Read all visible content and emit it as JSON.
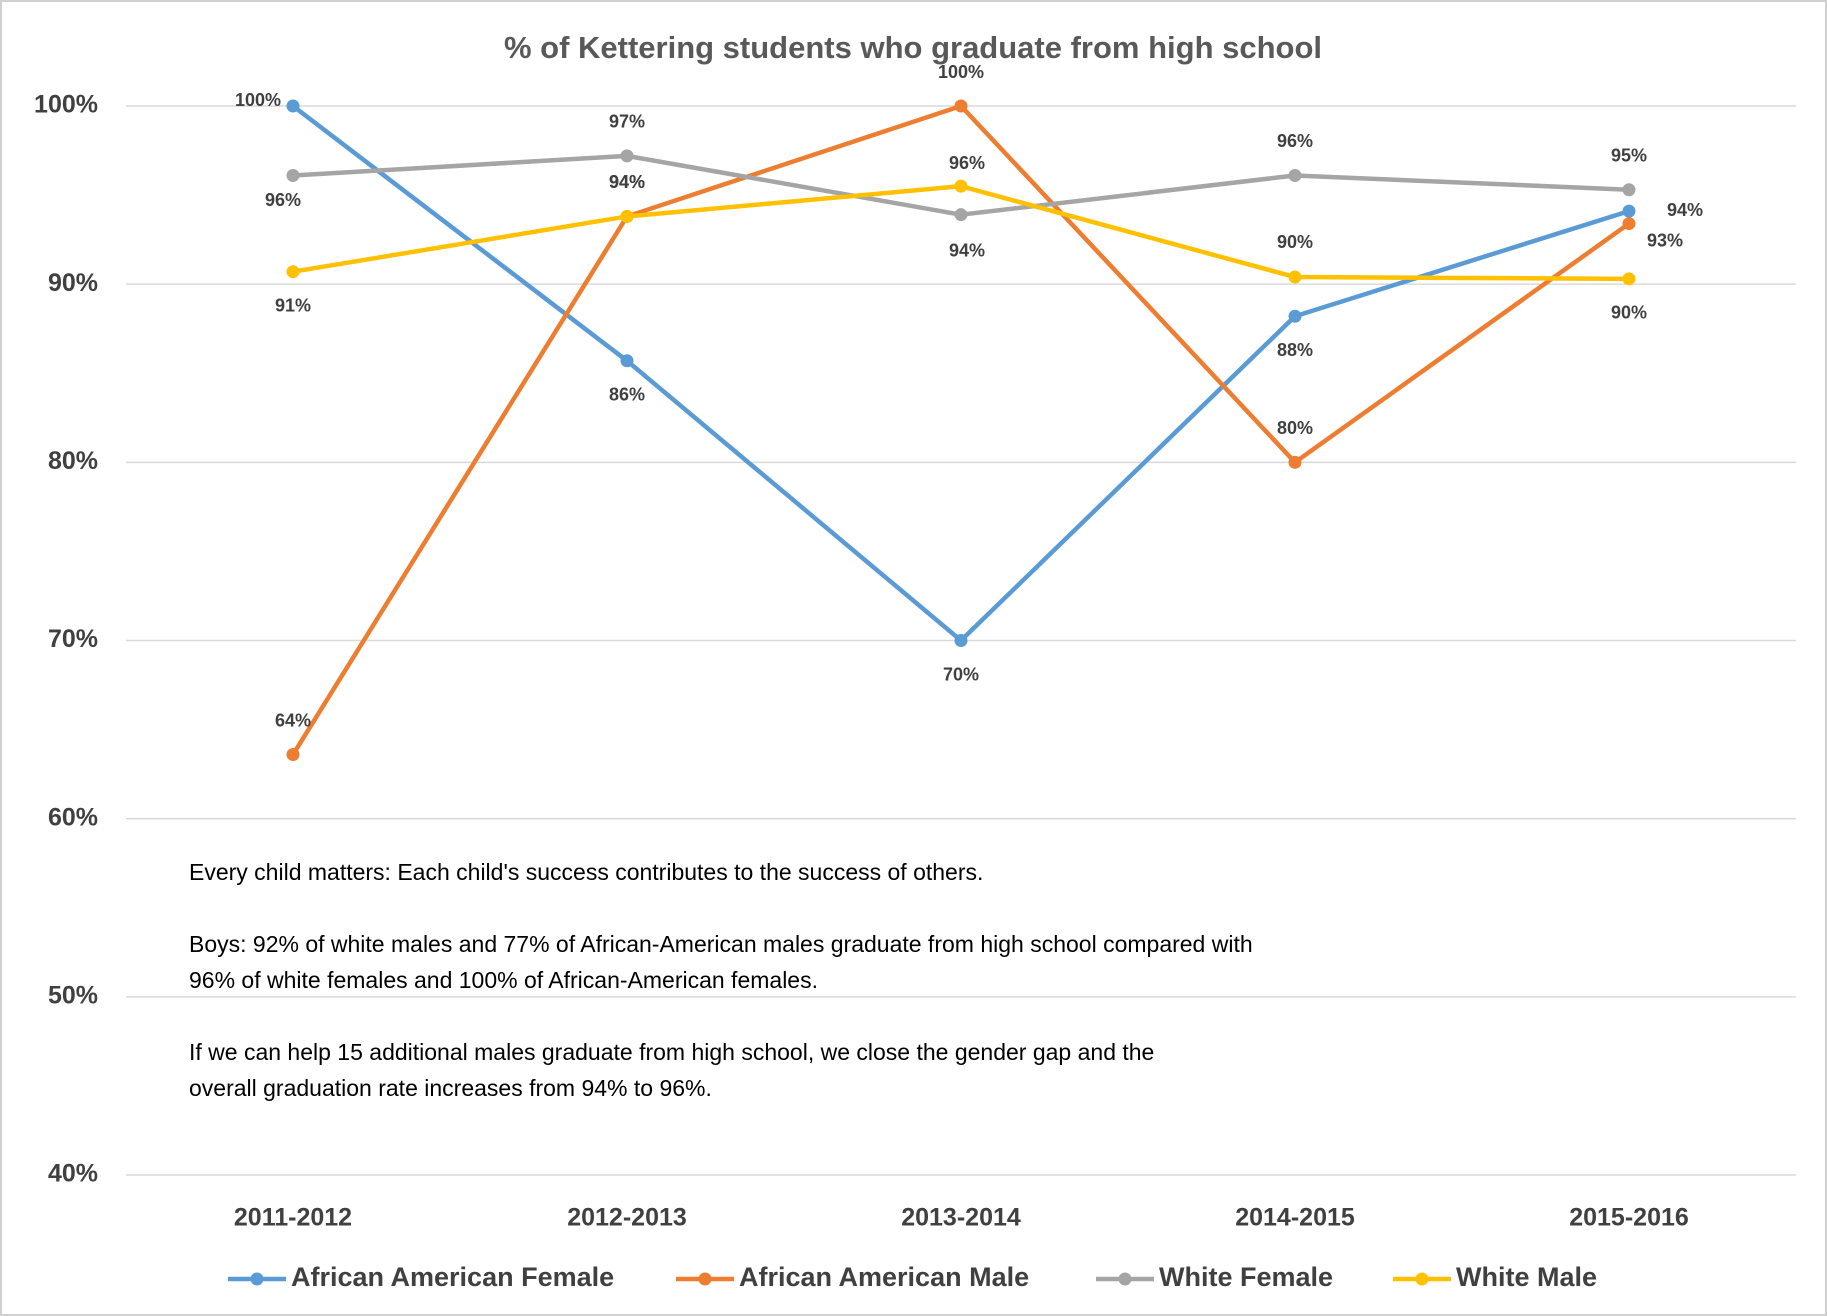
{
  "chart_data": {
    "type": "line",
    "title": "% of Kettering students who graduate from high school",
    "categories": [
      "2011-2012",
      "2012-2013",
      "2013-2014",
      "2014-2015",
      "2015-2016"
    ],
    "series": [
      {
        "name": "African American Female",
        "color": "#5b9bd5",
        "values": [
          100,
          85.7,
          70,
          88.2,
          94.1
        ],
        "value_labels": [
          "100%",
          "86%",
          "70%",
          "88%",
          "94%"
        ]
      },
      {
        "name": "African American Male",
        "color": "#ed7d31",
        "values": [
          63.6,
          93.8,
          100,
          80,
          93.4
        ],
        "value_labels": [
          "64%",
          "94%",
          "100%",
          "80%",
          "93%"
        ]
      },
      {
        "name": "White Female",
        "color": "#a5a5a5",
        "values": [
          96.1,
          97.2,
          93.9,
          96.1,
          95.3
        ],
        "value_labels": [
          "96%",
          "97%",
          "94%",
          "96%",
          "95%"
        ]
      },
      {
        "name": "White Male",
        "color": "#ffc000",
        "values": [
          90.7,
          93.8,
          95.5,
          90.4,
          90.3
        ],
        "value_labels": [
          "91%",
          "94%",
          "96%",
          "90%",
          "90%"
        ]
      }
    ],
    "ylim": [
      40,
      100
    ],
    "yticks": [
      {
        "value": 40,
        "label": "40%"
      },
      {
        "value": 50,
        "label": "50%"
      },
      {
        "value": 60,
        "label": "60%"
      },
      {
        "value": 70,
        "label": "70%"
      },
      {
        "value": 80,
        "label": "80%"
      },
      {
        "value": 90,
        "label": "90%"
      },
      {
        "value": 100,
        "label": "100%"
      }
    ],
    "grid": true,
    "legend": "bottom",
    "annotations": [
      "Every child matters: Each child's success contributes to the success of others.",
      "Boys: 92% of white males and 77% of African-American males graduate from high school compared with",
      "96% of white females and 100% of African-American females.",
      "If we can help 15 additional males graduate from high school, we close the gender gap and the",
      "overall graduation rate increases from 94% to 96%."
    ]
  }
}
